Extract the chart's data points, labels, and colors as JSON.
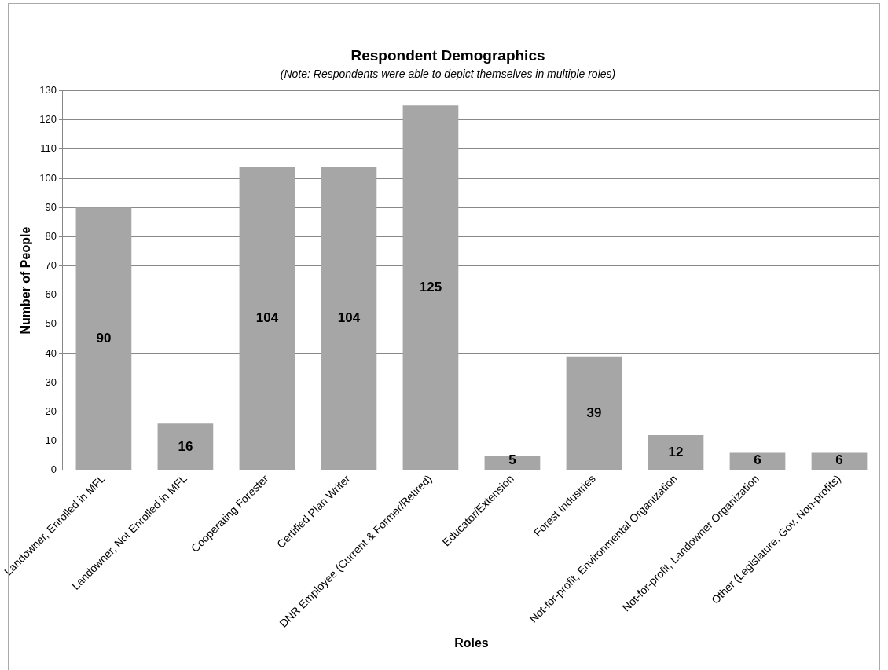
{
  "chart_data": {
    "type": "bar",
    "title": "Respondent Demographics",
    "subtitle": "(Note: Respondents were able to depict themselves in multiple roles)",
    "xlabel": "Roles",
    "ylabel": "Number of People",
    "categories": [
      "Landowner, Enrolled in MFL",
      "Landowner, Not Enrolled in MFL",
      "Cooperating Forester",
      "Certified Plan Writer",
      "DNR Employee (Current & Former/Retired)",
      "Educator/Extension",
      "Forest Industries",
      "Not-for-profit, Environmental Organization",
      "Not-for-profit, Landowner Organization",
      "Other (Legislature, Gov. Non-profits)"
    ],
    "values": [
      90,
      16,
      104,
      104,
      125,
      5,
      39,
      12,
      6,
      6
    ],
    "color": "#a6a6a6",
    "ylim": [
      0,
      130
    ],
    "yticks": [
      0,
      10,
      20,
      30,
      40,
      50,
      60,
      70,
      80,
      90,
      100,
      110,
      120,
      130
    ],
    "grid": "y",
    "legend": false,
    "data_labels": true
  }
}
